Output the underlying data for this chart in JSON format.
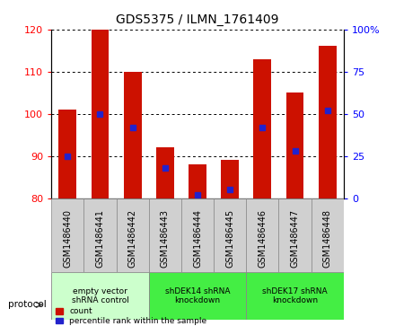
{
  "title": "GDS5375 / ILMN_1761409",
  "samples": [
    "GSM1486440",
    "GSM1486441",
    "GSM1486442",
    "GSM1486443",
    "GSM1486444",
    "GSM1486445",
    "GSM1486446",
    "GSM1486447",
    "GSM1486448"
  ],
  "counts": [
    101,
    120,
    110,
    92,
    88,
    89,
    113,
    105,
    116
  ],
  "percentile_ranks": [
    25,
    50,
    42,
    18,
    2,
    5,
    42,
    28,
    52
  ],
  "ylim_left": [
    80,
    120
  ],
  "ylim_right": [
    0,
    100
  ],
  "yticks_left": [
    80,
    90,
    100,
    110,
    120
  ],
  "yticks_right": [
    0,
    25,
    50,
    75,
    100
  ],
  "bar_color": "#cc1100",
  "dot_color": "#2222cc",
  "tick_bg_color": "#d0d0d0",
  "plot_bg_color": "#ffffff",
  "protocol_groups": [
    {
      "label": "empty vector\nshRNA control",
      "start": 0,
      "end": 3,
      "color": "#ccffcc"
    },
    {
      "label": "shDEK14 shRNA\nknockdown",
      "start": 3,
      "end": 6,
      "color": "#44ee44"
    },
    {
      "label": "shDEK17 shRNA\nknockdown",
      "start": 6,
      "end": 9,
      "color": "#44ee44"
    }
  ],
  "legend_count_label": "count",
  "legend_pct_label": "percentile rank within the sample",
  "protocol_label": "protocol"
}
